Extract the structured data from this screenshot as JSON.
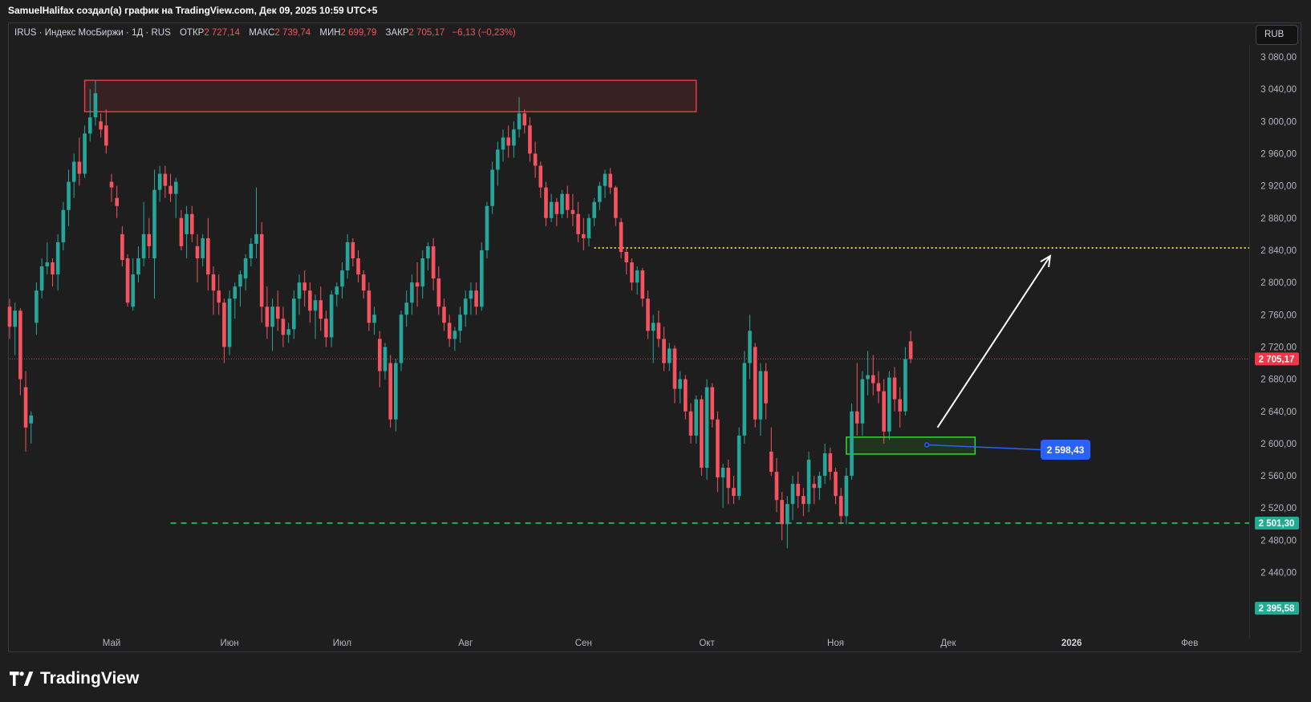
{
  "header": {
    "attribution": "SamuelHalifax создал(а) график на TradingView.com, Дек 09, 2025 10:59 UTC+5"
  },
  "legend": {
    "symbol_line": "IRUS · Индекс МосБиржи · 1Д · RUS",
    "open_label": "ОТКР",
    "open_value": "2 727,14",
    "high_label": "МАКС",
    "high_value": "2 739,74",
    "low_label": "МИН",
    "low_value": "2 699,79",
    "close_label": "ЗАКР",
    "close_value": "2 705,17",
    "change": "−6,13 (−0,23%)"
  },
  "currency_button": "RUB",
  "logo_text": "TradingView",
  "colors": {
    "background": "#1e1e1e",
    "up": "#26a69a",
    "down": "#f7525f",
    "resistance_zone": "#f23645",
    "support_zone": "#32d732",
    "dashed_level": "#22d66a",
    "dotted_level": "#e6d23a",
    "callout": "#2962ff"
  },
  "chart_data": {
    "type": "candlestick",
    "symbol": "IRUS",
    "interval": "1Д",
    "ylim": [
      2385,
      3100
    ],
    "y_ticks": [
      "3 080,00",
      "3 040,00",
      "3 000,00",
      "2 960,00",
      "2 920,00",
      "2 880,00",
      "2 840,00",
      "2 800,00",
      "2 760,00",
      "2 720,00",
      "2 680,00",
      "2 640,00",
      "2 600,00",
      "2 560,00",
      "2 520,00",
      "2 480,00",
      "2 440,00"
    ],
    "y_tick_values": [
      3080,
      3040,
      3000,
      2960,
      2920,
      2880,
      2840,
      2800,
      2760,
      2720,
      2680,
      2640,
      2600,
      2560,
      2520,
      2480,
      2440
    ],
    "x_labels": [
      {
        "label": "Май",
        "index": 19
      },
      {
        "label": "Июн",
        "index": 41
      },
      {
        "label": "Июл",
        "index": 62
      },
      {
        "label": "Авг",
        "index": 85
      },
      {
        "label": "Сен",
        "index": 107
      },
      {
        "label": "Окт",
        "index": 130
      },
      {
        "label": "Ноя",
        "index": 154
      },
      {
        "label": "Дек",
        "index": 175
      },
      {
        "label": "2026",
        "index": 198
      },
      {
        "label": "Фев",
        "index": 220
      }
    ],
    "price_labels": [
      {
        "text": "2 705,17",
        "value": 2705.17,
        "color": "#f23645"
      },
      {
        "text": "2 501,30",
        "value": 2501.3,
        "color": "#22ab94"
      },
      {
        "text": "2 395,58",
        "value": 2395.58,
        "color": "#22ab94"
      }
    ],
    "last_price": 2705.17,
    "levels": [
      {
        "value": 2843,
        "style": "dotted",
        "color": "#e6d23a",
        "from_index": 109
      },
      {
        "value": 2501.3,
        "style": "dashed",
        "color": "#22d66a",
        "from_index": 30
      }
    ],
    "zones": [
      {
        "name": "resistance",
        "from_index": 14,
        "to_index": 128,
        "y_top": 3051,
        "y_bottom": 3012,
        "color": "#f23645"
      },
      {
        "name": "support",
        "from_index": 156,
        "to_index": 180,
        "y_top": 2608,
        "y_bottom": 2587,
        "color": "#32d732"
      }
    ],
    "arrow": {
      "from_index": 173,
      "from_value": 2620,
      "to_index": 194,
      "to_value": 2833
    },
    "callout": {
      "text": "2 598,43",
      "anchor_index": 171,
      "anchor_value": 2598.43
    },
    "candles": [
      [
        2770,
        2780,
        2730,
        2745
      ],
      [
        2745,
        2775,
        2710,
        2765
      ],
      [
        2765,
        2768,
        2660,
        2680
      ],
      [
        2670,
        2690,
        2590,
        2620
      ],
      [
        2625,
        2640,
        2600,
        2635
      ],
      [
        2750,
        2800,
        2735,
        2790
      ],
      [
        2790,
        2830,
        2780,
        2820
      ],
      [
        2820,
        2850,
        2810,
        2825
      ],
      [
        2825,
        2830,
        2795,
        2810
      ],
      [
        2810,
        2860,
        2790,
        2850
      ],
      [
        2850,
        2900,
        2840,
        2890
      ],
      [
        2890,
        2940,
        2870,
        2925
      ],
      [
        2925,
        2960,
        2905,
        2950
      ],
      [
        2950,
        2980,
        2920,
        2935
      ],
      [
        2935,
        2995,
        2930,
        2985
      ],
      [
        2985,
        3040,
        2975,
        3005
      ],
      [
        3005,
        3051,
        2995,
        3035
      ],
      [
        3000,
        3010,
        2980,
        2990
      ],
      [
        2995,
        3015,
        2960,
        2970
      ],
      [
        2925,
        2935,
        2900,
        2918
      ],
      [
        2905,
        2920,
        2880,
        2895
      ],
      [
        2860,
        2870,
        2820,
        2828
      ],
      [
        2830,
        2835,
        2770,
        2775
      ],
      [
        2770,
        2830,
        2765,
        2810
      ],
      [
        2810,
        2845,
        2800,
        2830
      ],
      [
        2830,
        2900,
        2820,
        2860
      ],
      [
        2860,
        2880,
        2830,
        2845
      ],
      [
        2830,
        2940,
        2780,
        2915
      ],
      [
        2915,
        2945,
        2900,
        2935
      ],
      [
        2935,
        2945,
        2905,
        2920
      ],
      [
        2920,
        2935,
        2900,
        2910
      ],
      [
        2910,
        2930,
        2880,
        2925
      ],
      [
        2880,
        2890,
        2840,
        2845
      ],
      [
        2860,
        2895,
        2830,
        2885
      ],
      [
        2885,
        2895,
        2850,
        2860
      ],
      [
        2845,
        2860,
        2800,
        2830
      ],
      [
        2830,
        2860,
        2820,
        2855
      ],
      [
        2855,
        2880,
        2790,
        2810
      ],
      [
        2810,
        2820,
        2760,
        2790
      ],
      [
        2790,
        2810,
        2760,
        2775
      ],
      [
        2775,
        2780,
        2700,
        2720
      ],
      [
        2720,
        2790,
        2710,
        2780
      ],
      [
        2780,
        2800,
        2755,
        2795
      ],
      [
        2795,
        2815,
        2770,
        2810
      ],
      [
        2805,
        2835,
        2790,
        2830
      ],
      [
        2830,
        2855,
        2820,
        2848
      ],
      [
        2848,
        2918,
        2830,
        2860
      ],
      [
        2860,
        2875,
        2750,
        2770
      ],
      [
        2770,
        2795,
        2730,
        2745
      ],
      [
        2745,
        2780,
        2715,
        2770
      ],
      [
        2770,
        2790,
        2740,
        2755
      ],
      [
        2755,
        2770,
        2720,
        2735
      ],
      [
        2735,
        2750,
        2725,
        2742
      ],
      [
        2742,
        2790,
        2730,
        2780
      ],
      [
        2780,
        2810,
        2760,
        2800
      ],
      [
        2800,
        2815,
        2770,
        2790
      ],
      [
        2790,
        2800,
        2750,
        2765
      ],
      [
        2765,
        2785,
        2730,
        2778
      ],
      [
        2778,
        2795,
        2740,
        2755
      ],
      [
        2755,
        2765,
        2720,
        2732
      ],
      [
        2732,
        2790,
        2720,
        2785
      ],
      [
        2785,
        2800,
        2770,
        2795
      ],
      [
        2795,
        2825,
        2780,
        2815
      ],
      [
        2815,
        2860,
        2805,
        2850
      ],
      [
        2850,
        2855,
        2820,
        2830
      ],
      [
        2830,
        2840,
        2800,
        2810
      ],
      [
        2810,
        2815,
        2780,
        2790
      ],
      [
        2790,
        2800,
        2740,
        2750
      ],
      [
        2750,
        2770,
        2735,
        2760
      ],
      [
        2730,
        2740,
        2670,
        2690
      ],
      [
        2690,
        2725,
        2680,
        2720
      ],
      [
        2700,
        2710,
        2620,
        2630
      ],
      [
        2630,
        2705,
        2615,
        2700
      ],
      [
        2700,
        2765,
        2690,
        2760
      ],
      [
        2760,
        2790,
        2745,
        2775
      ],
      [
        2775,
        2810,
        2760,
        2800
      ],
      [
        2800,
        2825,
        2770,
        2795
      ],
      [
        2795,
        2840,
        2780,
        2830
      ],
      [
        2830,
        2850,
        2815,
        2845
      ],
      [
        2845,
        2855,
        2790,
        2805
      ],
      [
        2805,
        2820,
        2760,
        2770
      ],
      [
        2770,
        2780,
        2740,
        2750
      ],
      [
        2750,
        2760,
        2720,
        2730
      ],
      [
        2730,
        2745,
        2715,
        2740
      ],
      [
        2740,
        2770,
        2725,
        2760
      ],
      [
        2760,
        2790,
        2745,
        2780
      ],
      [
        2780,
        2800,
        2760,
        2790
      ],
      [
        2790,
        2800,
        2760,
        2770
      ],
      [
        2770,
        2850,
        2765,
        2840
      ],
      [
        2840,
        2900,
        2830,
        2895
      ],
      [
        2895,
        2950,
        2885,
        2940
      ],
      [
        2940,
        2975,
        2920,
        2965
      ],
      [
        2965,
        2990,
        2950,
        2980
      ],
      [
        2980,
        2995,
        2955,
        2970
      ],
      [
        2970,
        3000,
        2955,
        2990
      ],
      [
        2990,
        3030,
        2980,
        3010
      ],
      [
        3010,
        3015,
        2985,
        2995
      ],
      [
        2995,
        3005,
        2950,
        2960
      ],
      [
        2960,
        2975,
        2930,
        2945
      ],
      [
        2945,
        2950,
        2905,
        2918
      ],
      [
        2918,
        2925,
        2870,
        2880
      ],
      [
        2880,
        2910,
        2875,
        2900
      ],
      [
        2900,
        2905,
        2870,
        2885
      ],
      [
        2885,
        2915,
        2880,
        2910
      ],
      [
        2910,
        2920,
        2880,
        2890
      ],
      [
        2890,
        2910,
        2870,
        2885
      ],
      [
        2885,
        2900,
        2850,
        2860
      ],
      [
        2860,
        2880,
        2840,
        2855
      ],
      [
        2855,
        2885,
        2845,
        2880
      ],
      [
        2880,
        2905,
        2870,
        2900
      ],
      [
        2900,
        2925,
        2890,
        2920
      ],
      [
        2920,
        2940,
        2905,
        2935
      ],
      [
        2935,
        2942,
        2910,
        2918
      ],
      [
        2918,
        2920,
        2870,
        2880
      ],
      [
        2875,
        2880,
        2830,
        2838
      ],
      [
        2838,
        2842,
        2810,
        2825
      ],
      [
        2825,
        2830,
        2790,
        2800
      ],
      [
        2800,
        2820,
        2785,
        2815
      ],
      [
        2815,
        2818,
        2770,
        2780
      ],
      [
        2780,
        2790,
        2730,
        2740
      ],
      [
        2740,
        2760,
        2700,
        2750
      ],
      [
        2750,
        2765,
        2720,
        2730
      ],
      [
        2730,
        2745,
        2690,
        2700
      ],
      [
        2700,
        2725,
        2690,
        2718
      ],
      [
        2718,
        2722,
        2650,
        2668
      ],
      [
        2668,
        2690,
        2650,
        2680
      ],
      [
        2680,
        2685,
        2630,
        2640
      ],
      [
        2640,
        2650,
        2600,
        2610
      ],
      [
        2610,
        2660,
        2600,
        2655
      ],
      [
        2655,
        2660,
        2560,
        2570
      ],
      [
        2570,
        2680,
        2555,
        2670
      ],
      [
        2670,
        2675,
        2620,
        2630
      ],
      [
        2630,
        2640,
        2540,
        2558
      ],
      [
        2558,
        2575,
        2520,
        2570
      ],
      [
        2570,
        2580,
        2525,
        2545
      ],
      [
        2545,
        2560,
        2525,
        2535
      ],
      [
        2535,
        2620,
        2530,
        2610
      ],
      [
        2610,
        2715,
        2600,
        2700
      ],
      [
        2700,
        2760,
        2680,
        2740
      ],
      [
        2720,
        2725,
        2620,
        2630
      ],
      [
        2630,
        2700,
        2610,
        2690
      ],
      [
        2690,
        2700,
        2630,
        2650
      ],
      [
        2590,
        2620,
        2560,
        2565
      ],
      [
        2565,
        2582,
        2515,
        2530
      ],
      [
        2530,
        2540,
        2480,
        2500
      ],
      [
        2500,
        2535,
        2470,
        2525
      ],
      [
        2525,
        2560,
        2505,
        2550
      ],
      [
        2550,
        2565,
        2520,
        2535
      ],
      [
        2535,
        2545,
        2510,
        2525
      ],
      [
        2525,
        2590,
        2515,
        2580
      ],
      [
        2550,
        2560,
        2525,
        2545
      ],
      [
        2545,
        2565,
        2530,
        2560
      ],
      [
        2560,
        2600,
        2550,
        2588
      ],
      [
        2588,
        2595,
        2555,
        2565
      ],
      [
        2565,
        2570,
        2525,
        2535
      ],
      [
        2535,
        2545,
        2500,
        2510
      ],
      [
        2510,
        2570,
        2500,
        2560
      ],
      [
        2560,
        2650,
        2555,
        2640
      ],
      [
        2640,
        2700,
        2610,
        2625
      ],
      [
        2625,
        2690,
        2610,
        2680
      ],
      [
        2680,
        2715,
        2660,
        2685
      ],
      [
        2685,
        2710,
        2660,
        2675
      ],
      [
        2675,
        2690,
        2650,
        2665
      ],
      [
        2665,
        2680,
        2600,
        2615
      ],
      [
        2615,
        2690,
        2605,
        2682
      ],
      [
        2682,
        2695,
        2640,
        2655
      ],
      [
        2655,
        2670,
        2620,
        2640
      ],
      [
        2640,
        2720,
        2635,
        2705
      ],
      [
        2727,
        2740,
        2700,
        2705
      ]
    ]
  }
}
